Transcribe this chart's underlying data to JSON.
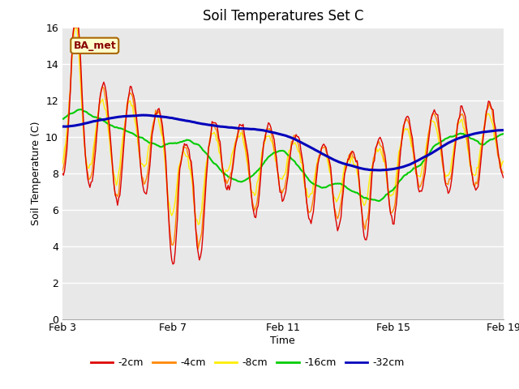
{
  "title": "Soil Temperatures Set C",
  "xlabel": "Time",
  "ylabel": "Soil Temperature (C)",
  "ylim": [
    0,
    16
  ],
  "yticks": [
    0,
    2,
    4,
    6,
    8,
    10,
    12,
    14,
    16
  ],
  "xtick_labels": [
    "Feb 3",
    "Feb 7",
    "Feb 11",
    "Feb 15",
    "Feb 19"
  ],
  "xtick_positions": [
    0,
    4,
    8,
    12,
    16
  ],
  "colors": {
    "-2cm": "#dd0000",
    "-4cm": "#ff8800",
    "-8cm": "#ffee00",
    "-16cm": "#00cc00",
    "-32cm": "#0000bb"
  },
  "legend_label": "BA_met",
  "bg_color": "#e8e8e8"
}
